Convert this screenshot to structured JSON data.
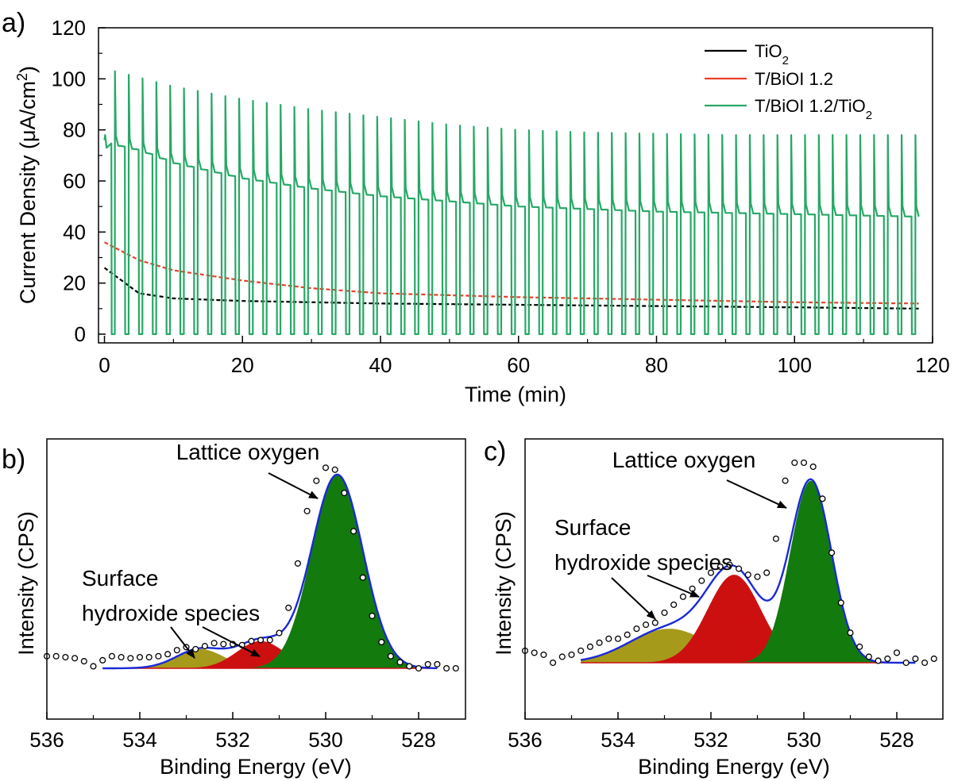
{
  "chart_data": [
    {
      "panel": "a)",
      "type": "line",
      "xlabel": "Time (min)",
      "ylabel": "Current Density (μA/cm²)",
      "ylabel_parts": {
        "main": "Current Density (μA/cm",
        "sup": "2",
        "end": ")"
      },
      "xlim": [
        0,
        120
      ],
      "ylim": [
        0,
        120
      ],
      "x_ticks": [
        "0",
        "20",
        "40",
        "60",
        "80",
        "100",
        "120"
      ],
      "y_ticks": [
        "0",
        "20",
        "40",
        "60",
        "80",
        "100",
        "120"
      ],
      "legend_position": "top-right",
      "series": [
        {
          "name": "TiO2",
          "name_parts": {
            "main": "TiO",
            "sub": "2",
            "end": ""
          },
          "color": "#000000",
          "style": "chopped-dashed",
          "light_current": {
            "x": [
              0,
              5,
              10,
              20,
              30,
              40,
              60,
              80,
              100,
              118
            ],
            "y": [
              26,
              16,
              14,
              13,
              12.5,
              12,
              11.5,
              11,
              10.5,
              10
            ]
          }
        },
        {
          "name": "T/BiOI 1.2",
          "name_parts": {
            "main": "T/BiOI 1.2",
            "sub": "",
            "end": ""
          },
          "color": "#e8402a",
          "style": "chopped-dashed",
          "light_current": {
            "x": [
              0,
              5,
              10,
              20,
              30,
              40,
              60,
              80,
              100,
              118
            ],
            "y": [
              36,
              29,
              25,
              21,
              18,
              16,
              14.5,
              13.5,
              12.5,
              12
            ]
          }
        },
        {
          "name": "T/BiOI 1.2/TiO2",
          "name_parts": {
            "main": "T/BiOI 1.2/TiO",
            "sub": "2",
            "end": ""
          },
          "color": "#27a866",
          "style": "chopped",
          "light_steady": {
            "x": [
              0,
              5,
              10,
              20,
              30,
              40,
              50,
              60,
              70,
              80,
              90,
              100,
              118
            ],
            "y": [
              75,
              72,
              67,
              61,
              57,
              54,
              52,
              50,
              49,
              48,
              47.5,
              47,
              46
            ]
          },
          "light_spike": {
            "x": [
              1.5,
              10,
              20,
              30,
              40,
              50,
              60,
              70,
              80,
              90,
              100,
              118
            ],
            "y": [
              103,
              97,
              92,
              88,
              85,
              82,
              80,
              79,
              78.5,
              78,
              78,
              78
            ]
          },
          "dark": 0,
          "period_min": 2
        }
      ]
    },
    {
      "panel": "b)",
      "type": "scatter",
      "xlabel": "Binding Energy (eV)",
      "ylabel": "Intensity (CPS)",
      "xlim": [
        536,
        527
      ],
      "x_ticks": [
        "536",
        "534",
        "532",
        "530",
        "528"
      ],
      "peaks": [
        {
          "center": 532.7,
          "height": 0.095,
          "fwhm": 1.2,
          "color": "#a69a1a"
        },
        {
          "center": 531.4,
          "height": 0.135,
          "fwhm": 1.2,
          "color": "#cc1010"
        },
        {
          "center": 529.75,
          "height": 0.96,
          "fwhm": 1.3,
          "color": "#137a0d"
        }
      ],
      "points": {
        "x": [
          536.0,
          535.8,
          535.6,
          535.4,
          535.2,
          535.0,
          534.8,
          534.6,
          534.4,
          534.2,
          534.0,
          533.8,
          533.6,
          533.4,
          533.2,
          533.0,
          532.8,
          532.6,
          532.4,
          532.2,
          532.0,
          531.8,
          531.6,
          531.4,
          531.2,
          531.0,
          530.8,
          530.6,
          530.4,
          530.2,
          530.0,
          529.8,
          529.6,
          529.4,
          529.2,
          529.0,
          528.8,
          528.6,
          528.4,
          528.2,
          528.0,
          527.8,
          527.6,
          527.4,
          527.2
        ],
        "y": [
          0.06,
          0.06,
          0.055,
          0.05,
          0.035,
          0.01,
          0.04,
          0.06,
          0.055,
          0.05,
          0.055,
          0.055,
          0.06,
          0.07,
          0.09,
          0.105,
          0.095,
          0.11,
          0.125,
          0.12,
          0.12,
          0.115,
          0.135,
          0.14,
          0.14,
          0.175,
          0.3,
          0.52,
          0.78,
          0.93,
          0.995,
          0.985,
          0.87,
          0.68,
          0.45,
          0.26,
          0.13,
          0.06,
          0.03,
          0.01,
          0.0,
          0.02,
          0.02,
          0.0,
          0.0
        ]
      },
      "annotations": [
        {
          "text": "Lattice oxygen",
          "lines": [
            "Lattice oxygen"
          ]
        },
        {
          "text": "Surface hydroxide species",
          "lines": [
            "Surface",
            "hydroxide species"
          ]
        }
      ]
    },
    {
      "panel": "c)",
      "type": "scatter",
      "xlabel": "Binding Energy (eV)",
      "ylabel": "Intensity (CPS)",
      "xlim": [
        536,
        527
      ],
      "x_ticks": [
        "536",
        "534",
        "532",
        "530",
        "528"
      ],
      "peaks": [
        {
          "center": 532.9,
          "height": 0.17,
          "fwhm": 2.0,
          "color": "#a69a1a"
        },
        {
          "center": 531.5,
          "height": 0.44,
          "fwhm": 1.35,
          "color": "#cc1010"
        },
        {
          "center": 529.85,
          "height": 0.91,
          "fwhm": 1.05,
          "color": "#137a0d"
        }
      ],
      "points": {
        "x": [
          536.0,
          535.8,
          535.6,
          535.4,
          535.2,
          535.0,
          534.8,
          534.6,
          534.4,
          534.2,
          534.0,
          533.8,
          533.6,
          533.4,
          533.2,
          533.0,
          532.8,
          532.6,
          532.4,
          532.2,
          532.0,
          531.8,
          531.6,
          531.4,
          531.2,
          531.0,
          530.8,
          530.6,
          530.4,
          530.2,
          530.0,
          529.8,
          529.6,
          529.4,
          529.2,
          529.0,
          528.8,
          528.6,
          528.4,
          528.2,
          528.0,
          527.8,
          527.6,
          527.4,
          527.2
        ],
        "y": [
          0.06,
          0.05,
          0.04,
          0.0,
          0.03,
          0.04,
          0.06,
          0.08,
          0.1,
          0.12,
          0.12,
          0.14,
          0.17,
          0.19,
          0.2,
          0.25,
          0.29,
          0.33,
          0.37,
          0.41,
          0.45,
          0.48,
          0.49,
          0.47,
          0.44,
          0.43,
          0.45,
          0.62,
          0.91,
          1.0,
          1.0,
          0.98,
          0.82,
          0.55,
          0.3,
          0.15,
          0.08,
          0.03,
          0.01,
          0.02,
          0.05,
          0.0,
          0.02,
          0.0,
          0.02
        ]
      },
      "annotations": [
        {
          "text": "Lattice oxygen",
          "lines": [
            "Lattice oxygen"
          ]
        },
        {
          "text": "Surface hydroxide species",
          "lines": [
            "Surface",
            "hydroxide species"
          ]
        }
      ]
    }
  ]
}
